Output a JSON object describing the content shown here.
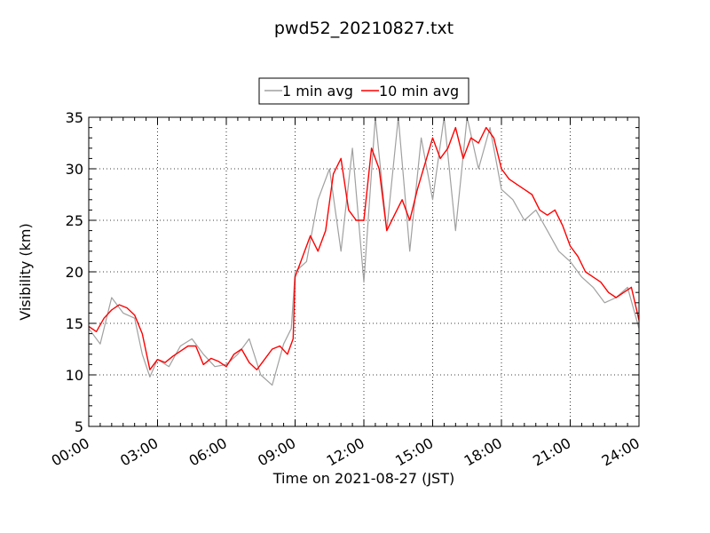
{
  "chart_data": {
    "type": "line",
    "title": "pwd52_20210827.txt",
    "xlabel": "Time on 2021-08-27 (JST)",
    "ylabel": "Visibility (km)",
    "xlim": [
      "00:00",
      "24:00"
    ],
    "ylim": [
      5,
      35
    ],
    "x_ticks": [
      "00:00",
      "03:00",
      "06:00",
      "09:00",
      "12:00",
      "15:00",
      "18:00",
      "21:00",
      "24:00"
    ],
    "y_ticks": [
      5,
      10,
      15,
      20,
      25,
      30,
      35
    ],
    "grid": true,
    "legend_position": "top-center",
    "series": [
      {
        "name": "1 min avg",
        "color": "#a0a0a0",
        "x": [
          "00:00",
          "00:30",
          "01:00",
          "01:30",
          "02:00",
          "02:20",
          "02:40",
          "03:00",
          "03:30",
          "04:00",
          "04:30",
          "05:00",
          "05:30",
          "06:00",
          "06:30",
          "07:00",
          "07:30",
          "08:00",
          "08:30",
          "08:50",
          "09:00",
          "09:30",
          "10:00",
          "10:30",
          "11:00",
          "11:30",
          "12:00",
          "12:30",
          "13:00",
          "13:30",
          "14:00",
          "14:30",
          "15:00",
          "15:30",
          "16:00",
          "16:30",
          "17:00",
          "17:30",
          "18:00",
          "18:30",
          "19:00",
          "19:30",
          "20:00",
          "20:30",
          "21:00",
          "21:30",
          "22:00",
          "22:30",
          "23:00",
          "23:30",
          "24:00"
        ],
        "values": [
          14.5,
          13.0,
          17.5,
          16.0,
          15.5,
          12.0,
          9.8,
          11.5,
          10.8,
          12.8,
          13.5,
          12.0,
          10.8,
          11.0,
          12.0,
          13.5,
          10.0,
          9.0,
          13.0,
          14.5,
          20.0,
          21.0,
          27.0,
          30.0,
          22.0,
          32.0,
          19.0,
          35.0,
          24.0,
          35.0,
          22.0,
          33.0,
          27.0,
          35.0,
          24.0,
          35.0,
          30.0,
          34.0,
          28.0,
          27.0,
          25.0,
          26.0,
          24.0,
          22.0,
          21.0,
          19.5,
          18.5,
          17.0,
          17.5,
          18.5,
          14.5
        ]
      },
      {
        "name": "10 min avg",
        "color": "#ff0000",
        "x": [
          "00:00",
          "00:20",
          "00:40",
          "01:00",
          "01:20",
          "01:40",
          "02:00",
          "02:20",
          "02:40",
          "03:00",
          "03:20",
          "03:40",
          "04:00",
          "04:20",
          "04:40",
          "05:00",
          "05:20",
          "05:40",
          "06:00",
          "06:20",
          "06:40",
          "07:00",
          "07:20",
          "07:40",
          "08:00",
          "08:20",
          "08:40",
          "08:55",
          "09:00",
          "09:20",
          "09:40",
          "10:00",
          "10:20",
          "10:40",
          "11:00",
          "11:20",
          "11:40",
          "12:00",
          "12:20",
          "12:40",
          "13:00",
          "13:20",
          "13:40",
          "14:00",
          "14:20",
          "14:40",
          "15:00",
          "15:20",
          "15:40",
          "16:00",
          "16:20",
          "16:40",
          "17:00",
          "17:20",
          "17:40",
          "18:00",
          "18:20",
          "18:40",
          "19:00",
          "19:20",
          "19:40",
          "20:00",
          "20:20",
          "20:40",
          "21:00",
          "21:20",
          "21:40",
          "22:00",
          "22:20",
          "22:40",
          "23:00",
          "23:20",
          "23:40",
          "24:00"
        ],
        "values": [
          14.7,
          14.2,
          15.5,
          16.3,
          16.8,
          16.5,
          15.8,
          14.0,
          10.5,
          11.5,
          11.2,
          11.8,
          12.3,
          12.8,
          12.8,
          11.0,
          11.6,
          11.3,
          10.8,
          12.0,
          12.5,
          11.2,
          10.5,
          11.5,
          12.5,
          12.8,
          12.0,
          13.5,
          19.5,
          21.5,
          23.5,
          22.0,
          24.0,
          29.5,
          31.0,
          26.0,
          25.0,
          25.0,
          32.0,
          30.0,
          24.0,
          25.5,
          27.0,
          25.0,
          28.0,
          30.5,
          33.0,
          31.0,
          32.0,
          34.0,
          31.0,
          33.0,
          32.5,
          34.0,
          33.0,
          30.0,
          29.0,
          28.5,
          28.0,
          27.5,
          26.0,
          25.5,
          26.0,
          24.5,
          22.5,
          21.5,
          20.0,
          19.5,
          19.0,
          18.0,
          17.5,
          18.0,
          18.5,
          15.3
        ]
      }
    ]
  }
}
